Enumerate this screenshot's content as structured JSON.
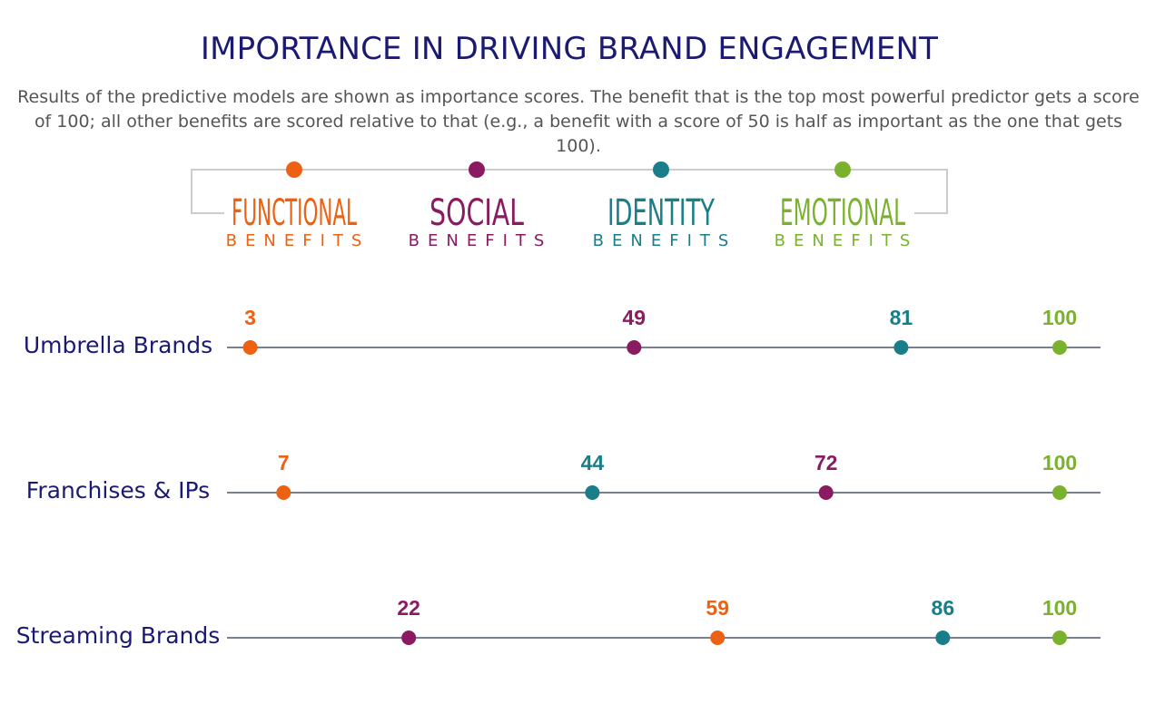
{
  "title": "IMPORTANCE IN DRIVING BRAND ENGAGEMENT",
  "subtitle": "Results of the predictive models are shown as importance scores. The benefit that is the top most powerful predictor gets a score of 100; all other benefits are scored relative to that (e.g., a benefit with a score of 50 is half as important as the one that gets 100).",
  "legend": [
    {
      "name": "FUNCTIONAL",
      "sub": "BENEFITS",
      "color": "#ec6112"
    },
    {
      "name": "SOCIAL",
      "sub": "BENEFITS",
      "color": "#8a1b61"
    },
    {
      "name": "IDENTITY",
      "sub": "BENEFITS",
      "color": "#1a7d8a"
    },
    {
      "name": "EMOTIONAL",
      "sub": "BENEFITS",
      "color": "#7ab22d"
    }
  ],
  "chart_data": {
    "type": "scatter",
    "title": "IMPORTANCE IN DRIVING BRAND ENGAGEMENT",
    "xlim": [
      0,
      100
    ],
    "grid": false,
    "legend_placement": "top",
    "categories": [
      "Umbrella Brands",
      "Franchises & IPs",
      "Streaming Brands"
    ],
    "series": [
      {
        "name": "FUNCTIONAL BENEFITS",
        "color": "#ec6112",
        "values": [
          3,
          7,
          59
        ]
      },
      {
        "name": "SOCIAL BENEFITS",
        "color": "#8a1b61",
        "values": [
          49,
          72,
          22
        ]
      },
      {
        "name": "IDENTITY BENEFITS",
        "color": "#1a7d8a",
        "values": [
          81,
          44,
          86
        ]
      },
      {
        "name": "EMOTIONAL BENEFITS",
        "color": "#7ab22d",
        "values": [
          100,
          100,
          100
        ]
      }
    ]
  }
}
